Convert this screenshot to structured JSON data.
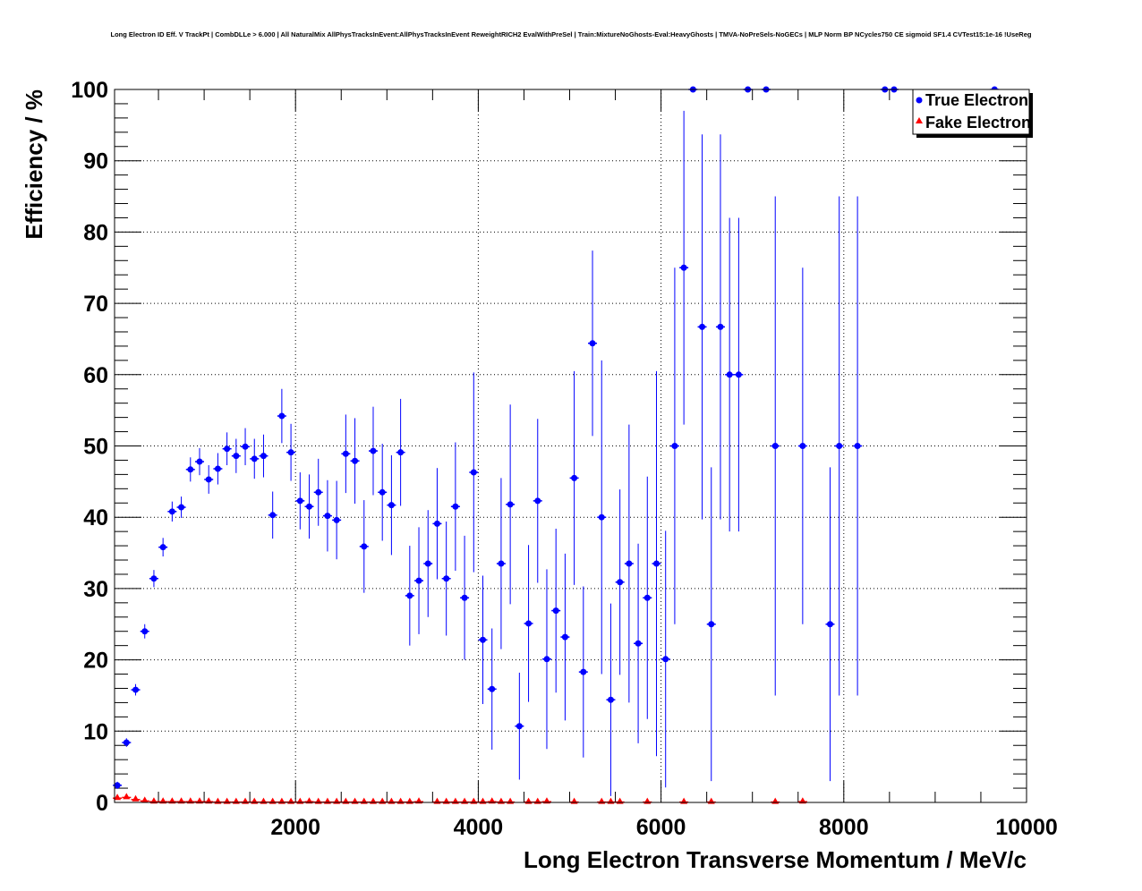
{
  "chart_data": {
    "type": "scatter",
    "title": "Long Electron ID Eff. V TrackPt | CombDLLe > 6.000 | All NaturalMix AllPhysTracksInEvent:AllPhysTracksInEvent ReweightRICH2 EvalWithPreSel | Train:MixtureNoGhosts-Eval:HeavyGhosts | TMVA-NoPreSels-NoGECs | MLP Norm BP NCycles750 CE sigmoid SF1.4 CVTest15:1e-16 !UseReg",
    "xlabel": "Long Electron Transverse Momentum / MeV/c",
    "ylabel": "Efficiency / %",
    "xlim": [
      0,
      10000
    ],
    "ylim": [
      0,
      100
    ],
    "xticks": [
      "2000",
      "4000",
      "6000",
      "8000",
      "10000"
    ],
    "xtick_values": [
      2000,
      4000,
      6000,
      8000,
      10000
    ],
    "yticks": [
      "0",
      "10",
      "20",
      "30",
      "40",
      "50",
      "60",
      "70",
      "80",
      "90",
      "100"
    ],
    "ytick_values": [
      0,
      10,
      20,
      30,
      40,
      50,
      60,
      70,
      80,
      90,
      100
    ],
    "grid": true,
    "legend_position": "top-right",
    "series": [
      {
        "name": "True Electron",
        "color": "#0000ff",
        "marker": "circle",
        "x": [
          50,
          150,
          250,
          350,
          450,
          550,
          650,
          750,
          850,
          950,
          1050,
          1150,
          1250,
          1350,
          1450,
          1550,
          1650,
          1750,
          1850,
          1950,
          2050,
          2150,
          2250,
          2350,
          2450,
          2550,
          2650,
          2750,
          2850,
          2950,
          3050,
          3150,
          3250,
          3350,
          3450,
          3550,
          3650,
          3750,
          3850,
          3950,
          4050,
          4150,
          4250,
          4350,
          4450,
          4550,
          4650,
          4750,
          4850,
          4950,
          5050,
          5150,
          5250,
          5350,
          5450,
          5550,
          5650,
          5750,
          5850,
          5950,
          6050,
          6150,
          6250,
          6350,
          6450,
          6550,
          6650,
          6750,
          6850,
          6950,
          7150,
          7250,
          7550,
          7850,
          7950,
          8150,
          8450,
          8550,
          9650
        ],
        "y": [
          2.4,
          8.4,
          15.8,
          24.0,
          31.4,
          35.8,
          40.8,
          41.4,
          46.7,
          47.8,
          45.3,
          46.8,
          49.6,
          48.6,
          49.9,
          48.2,
          48.6,
          40.3,
          54.2,
          49.1,
          42.3,
          41.5,
          43.5,
          40.2,
          39.6,
          48.9,
          47.9,
          35.9,
          49.3,
          43.5,
          41.7,
          49.1,
          29.0,
          31.1,
          33.5,
          39.1,
          31.4,
          41.5,
          28.7,
          46.3,
          22.8,
          15.9,
          33.5,
          41.8,
          10.7,
          25.1,
          42.3,
          20.1,
          26.9,
          23.2,
          45.5,
          18.3,
          64.4,
          40.0,
          14.4,
          30.9,
          33.5,
          22.3,
          28.7,
          33.5,
          20.1,
          50,
          75,
          100,
          66.7,
          25,
          66.7,
          60,
          60,
          100,
          100,
          50,
          50,
          25,
          50,
          50,
          100,
          100,
          100
        ],
        "yerr": [
          0.5,
          0.6,
          0.8,
          1,
          1.2,
          1.3,
          1.4,
          1.5,
          1.7,
          1.9,
          2,
          2.2,
          2.3,
          2.4,
          2.6,
          2.8,
          3,
          3.3,
          3.8,
          4,
          4,
          4.5,
          4.7,
          5,
          5.5,
          5.5,
          6,
          6.5,
          6.2,
          6.8,
          7,
          7.5,
          7,
          7.5,
          7.5,
          7.8,
          8,
          9,
          8.7,
          14,
          9,
          8.5,
          12,
          14,
          7.5,
          11,
          11.5,
          12.6,
          11.5,
          11.7,
          15,
          12,
          13,
          22,
          13.5,
          13,
          19.5,
          14,
          17,
          27,
          18,
          25,
          22,
          0,
          27,
          22,
          27,
          22,
          22,
          0,
          0,
          35,
          25,
          22,
          35,
          35,
          0,
          0,
          0
        ]
      },
      {
        "name": "Fake Electron",
        "color": "#ff0000",
        "marker": "triangle",
        "x": [
          50,
          150,
          250,
          350,
          450,
          550,
          650,
          750,
          850,
          950,
          1050,
          1150,
          1250,
          1350,
          1450,
          1550,
          1650,
          1750,
          1850,
          1950,
          2050,
          2150,
          2250,
          2350,
          2450,
          2550,
          2650,
          2750,
          2850,
          2950,
          3050,
          3150,
          3250,
          3350,
          3550,
          3650,
          3750,
          3850,
          3950,
          4050,
          4150,
          4250,
          4350,
          4550,
          4650,
          4750,
          5050,
          5350,
          5450,
          5550,
          5850,
          6250,
          6550,
          7250,
          7550
        ],
        "y": [
          0.6,
          0.7,
          0.4,
          0.2,
          0.1,
          0.1,
          0.1,
          0.1,
          0.1,
          0.1,
          0.1,
          0.05,
          0.05,
          0.05,
          0.05,
          0.05,
          0.05,
          0.05,
          0.05,
          0.05,
          0.05,
          0.1,
          0.05,
          0.05,
          0.05,
          0.05,
          0.05,
          0.05,
          0.05,
          0.05,
          0.05,
          0.05,
          0.05,
          0.1,
          0.05,
          0.05,
          0.05,
          0.05,
          0.05,
          0.05,
          0.1,
          0.05,
          0.05,
          0.05,
          0.05,
          0.1,
          0.05,
          0.05,
          0.05,
          0.05,
          0.05,
          0.05,
          0.05,
          0.05,
          0.1
        ]
      }
    ]
  }
}
